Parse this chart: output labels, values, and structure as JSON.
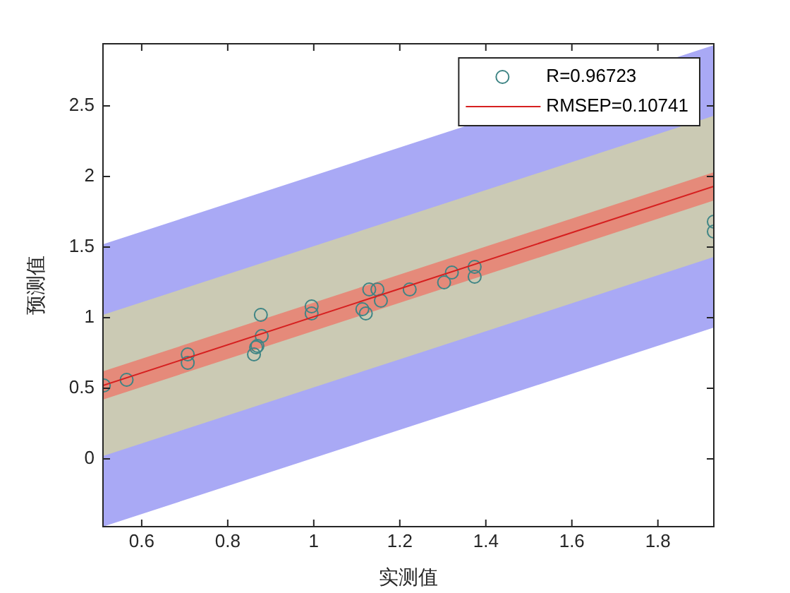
{
  "chart_data": {
    "type": "scatter",
    "xlabel": "实测值",
    "ylabel": "预测值",
    "xlim": [
      0.51,
      1.93
    ],
    "ylim": [
      -0.48,
      2.94
    ],
    "xticks": [
      0.6,
      0.8,
      1,
      1.2,
      1.4,
      1.6,
      1.8
    ],
    "yticks": [
      0,
      0.5,
      1,
      1.5,
      2,
      2.5
    ],
    "grid": false,
    "legend": "top right",
    "series": [
      {
        "type": "line",
        "color": "#a9a9f5",
        "x": [
          0.51,
          1.93
        ],
        "values": [
          null,
          null
        ],
        "lower": [
          -0.48,
          0.93
        ],
        "upper": [
          1.52,
          2.93
        ]
      },
      {
        "type": "line",
        "color": "#cbcab4",
        "x": [
          0.51,
          1.93
        ],
        "values": [
          null,
          null
        ],
        "lower": [
          0.02,
          1.43
        ],
        "upper": [
          1.02,
          2.43
        ]
      },
      {
        "type": "line",
        "color": "#e58a7a",
        "x": [
          0.51,
          1.93
        ],
        "values": [
          null,
          null
        ],
        "lower": [
          0.42,
          1.83
        ],
        "upper": [
          0.62,
          2.03
        ]
      },
      {
        "type": "scatter",
        "name": "R=0.96723",
        "color": "#3f8585",
        "marker": "circle",
        "x": [
          0.512,
          0.565,
          0.707,
          0.707,
          0.861,
          0.866,
          0.869,
          0.879,
          0.877,
          0.995,
          0.995,
          1.113,
          1.121,
          1.129,
          1.148,
          1.156,
          1.223,
          1.303,
          1.321,
          1.374,
          1.374,
          1.93,
          1.93
        ],
        "values": [
          0.52,
          0.56,
          0.74,
          0.68,
          0.74,
          0.79,
          0.8,
          0.87,
          1.02,
          1.08,
          1.03,
          1.06,
          1.03,
          1.2,
          1.2,
          1.12,
          1.2,
          1.25,
          1.32,
          1.36,
          1.29,
          1.68,
          1.61
        ]
      },
      {
        "type": "line",
        "name": "RMSEP=0.10741",
        "color": "#d62020",
        "line_style": "solid",
        "x": [
          0.51,
          1.93
        ],
        "values": [
          0.52,
          1.93
        ]
      }
    ]
  }
}
